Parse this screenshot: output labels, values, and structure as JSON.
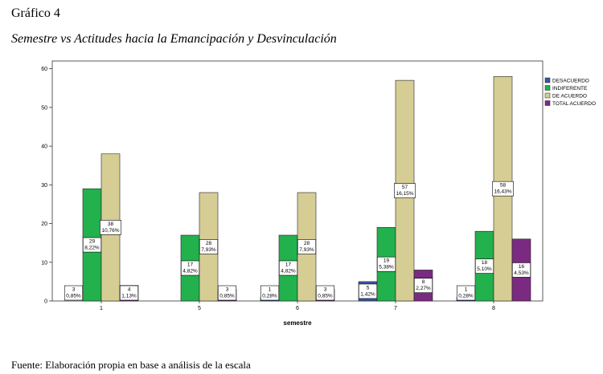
{
  "page": {
    "heading": "Gráfico 4",
    "subtitle": "Semestre vs Actitudes hacia la Emancipación y Desvinculación",
    "source": "Fuente: Elaboración propia en base a análisis de la escala"
  },
  "chart_data": {
    "type": "bar",
    "categories": [
      "1",
      "5",
      "6",
      "7",
      "8"
    ],
    "xlabel": "semestre",
    "ylabel": "",
    "ylim": [
      0,
      62
    ],
    "yticks": [
      0,
      10,
      20,
      30,
      40,
      50,
      60
    ],
    "grid": false,
    "legend_position": "right",
    "series": [
      {
        "name": "DESACUERDO",
        "color": "#3a55a6",
        "values": [
          null,
          null,
          1,
          5,
          1
        ],
        "labels": [
          null,
          null,
          "1\n0,28%",
          "5\n1,42%",
          "1\n0,28%"
        ]
      },
      {
        "name": "INDIFERENTE",
        "color": "#22b14c",
        "values": [
          29,
          17,
          17,
          19,
          18
        ],
        "labels": [
          "29\n8,22%",
          "17\n4,82%",
          "17\n4,82%",
          "19\n5,38%",
          "18\n5,10%"
        ]
      },
      {
        "name": "DE ACUERDO",
        "color": "#d6cd95",
        "values": [
          38,
          28,
          28,
          57,
          58
        ],
        "labels": [
          "38\n10,76%",
          "28\n7,93%",
          "28\n7,93%",
          "57\n16,15%",
          "58\n16,43%"
        ]
      },
      {
        "name": "TOTAL ACUERDO",
        "color": "#7b2a82",
        "values": [
          4,
          3,
          3,
          8,
          16
        ],
        "labels": [
          "4\n1,13%",
          "3\n0,85%",
          "3\n0,85%",
          "8\n2,27%",
          "16\n4,53%"
        ]
      }
    ],
    "extra_labels": [
      {
        "category": "1",
        "text": "3\n0,85%"
      }
    ]
  }
}
